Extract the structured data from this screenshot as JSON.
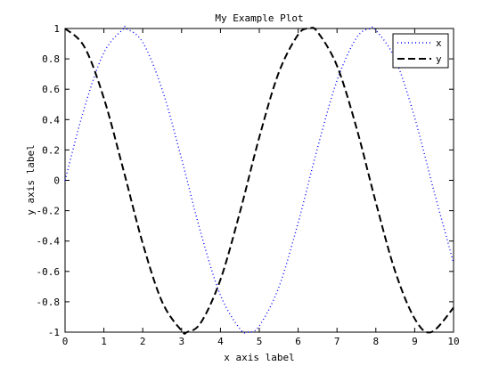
{
  "chart_data": {
    "type": "line",
    "title": "My Example Plot",
    "xlabel": "x axis label",
    "ylabel": "y axis label",
    "xlim": [
      0,
      10
    ],
    "ylim": [
      -1,
      1
    ],
    "xticks": [
      0,
      1,
      2,
      3,
      4,
      5,
      6,
      7,
      8,
      9,
      10
    ],
    "yticks": [
      -1,
      -0.8,
      -0.6,
      -0.4,
      -0.2,
      0,
      0.2,
      0.4,
      0.6,
      0.8,
      1
    ],
    "xtick_labels": [
      "0",
      "1",
      "2",
      "3",
      "4",
      "5",
      "6",
      "7",
      "8",
      "9",
      "10"
    ],
    "ytick_labels": [
      "-1",
      "-0.8",
      "-0.6",
      "-0.4",
      "-0.2",
      "0",
      "0.2",
      "0.4",
      "0.6",
      "0.8",
      "1"
    ],
    "grid": false,
    "legend_position": "top-right",
    "series": [
      {
        "name": "x",
        "color": "#0000ff",
        "style": "dotted",
        "x": [
          0,
          0.5,
          1,
          1.5,
          1.5708,
          2,
          2.5,
          3,
          3.5,
          4,
          4.5,
          4.7124,
          5,
          5.5,
          6,
          6.5,
          7,
          7.5,
          7.854,
          8,
          8.5,
          9,
          9.5,
          10
        ],
        "y": [
          0,
          0.479,
          0.841,
          0.997,
          1,
          0.909,
          0.598,
          0.141,
          -0.351,
          -0.757,
          -0.978,
          -1,
          -0.959,
          -0.706,
          -0.279,
          0.215,
          0.657,
          0.938,
          1,
          0.989,
          0.798,
          0.412,
          -0.075,
          -0.544
        ]
      },
      {
        "name": "y",
        "color": "#000000",
        "style": "dashed",
        "x": [
          0,
          0.5,
          1,
          1.5,
          2,
          2.5,
          3,
          3.1416,
          3.5,
          4,
          4.5,
          5,
          5.5,
          6,
          6.2832,
          6.5,
          7,
          7.5,
          8,
          8.5,
          9,
          9.4248,
          10
        ],
        "y": [
          1,
          0.878,
          0.54,
          0.071,
          -0.416,
          -0.801,
          -0.99,
          -1,
          -0.936,
          -0.654,
          -0.211,
          0.284,
          0.709,
          0.96,
          1,
          0.977,
          0.754,
          0.347,
          -0.146,
          -0.602,
          -0.911,
          -1,
          -0.839
        ]
      }
    ]
  }
}
